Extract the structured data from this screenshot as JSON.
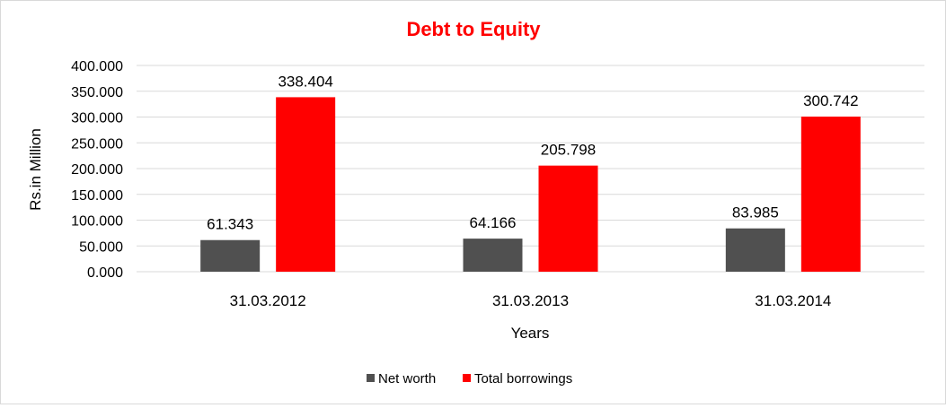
{
  "chart_data": {
    "type": "bar",
    "title": "Debt to Equity",
    "xlabel": "Years",
    "ylabel": "Rs.in Million",
    "categories": [
      "31.03.2012",
      "31.03.2013",
      "31.03.2014"
    ],
    "series": [
      {
        "name": "Net worth",
        "values": [
          61.343,
          64.166,
          83.985
        ],
        "color": "#505050"
      },
      {
        "name": "Total borrowings",
        "values": [
          338.404,
          205.798,
          300.742
        ],
        "color": "#ff0000"
      }
    ],
    "data_labels": [
      [
        "61.343",
        "64.166",
        "83.985"
      ],
      [
        "338.404",
        "205.798",
        "300.742"
      ]
    ],
    "ylim": [
      0,
      400
    ],
    "yticks": [
      "0.000",
      "50.000",
      "100.000",
      "150.000",
      "200.000",
      "250.000",
      "300.000",
      "350.000",
      "400.000"
    ],
    "ytick_values": [
      0,
      50,
      100,
      150,
      200,
      250,
      300,
      350,
      400
    ],
    "grid": true,
    "legend": "bottom",
    "title_color": "#ff0000",
    "grid_color": "#d9d9d9"
  }
}
